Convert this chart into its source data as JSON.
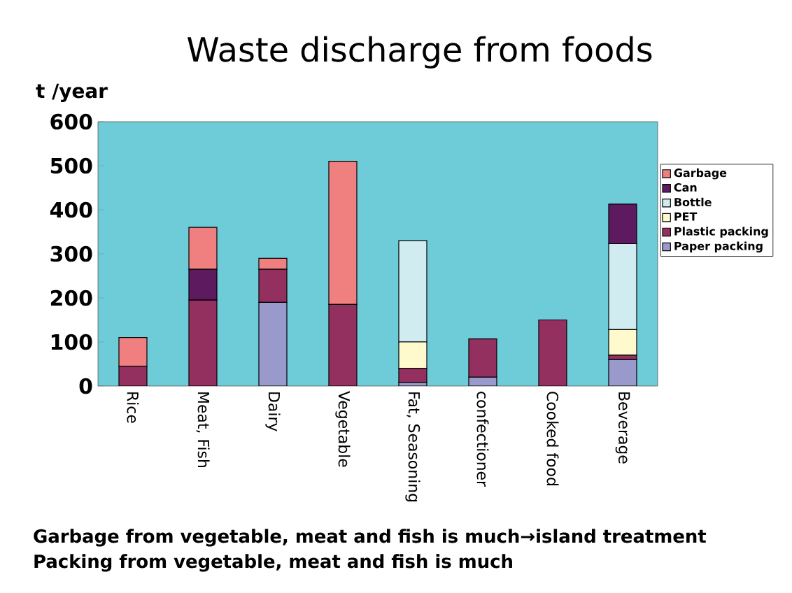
{
  "chart_data": {
    "type": "bar",
    "stacked": true,
    "title": "Waste discharge from foods",
    "ylabel": "t /year",
    "categories": [
      "Rice",
      "Meat, Fish",
      "Dairy",
      "Vegetable",
      "Fat, Seasoning",
      "confectioner",
      "Cooked food",
      "Beverage"
    ],
    "series": [
      {
        "name": "Paper packing",
        "color": "#9999cc",
        "values": [
          0,
          0,
          190,
          0,
          8,
          20,
          0,
          60
        ]
      },
      {
        "name": "Plastic packing",
        "color": "#943060",
        "values": [
          45,
          195,
          75,
          185,
          32,
          87,
          150,
          10
        ]
      },
      {
        "name": "PET",
        "color": "#fffacd",
        "values": [
          0,
          0,
          0,
          0,
          60,
          0,
          0,
          58
        ]
      },
      {
        "name": "Bottle",
        "color": "#d0ecf0",
        "values": [
          0,
          0,
          0,
          0,
          230,
          0,
          0,
          195
        ]
      },
      {
        "name": "Can",
        "color": "#5e1a5e",
        "values": [
          0,
          70,
          0,
          0,
          0,
          0,
          0,
          90
        ]
      },
      {
        "name": "Garbage",
        "color": "#f08080",
        "values": [
          65,
          95,
          25,
          325,
          0,
          0,
          0,
          0
        ]
      }
    ],
    "ylim": [
      0,
      600
    ],
    "yticks": [
      0,
      100,
      200,
      300,
      400,
      500,
      600
    ],
    "legend": "right",
    "annotations": [
      "Garbage from vegetable, meat and fish is much→island treatment",
      "Packing from vegetable, meat and fish is much"
    ]
  }
}
